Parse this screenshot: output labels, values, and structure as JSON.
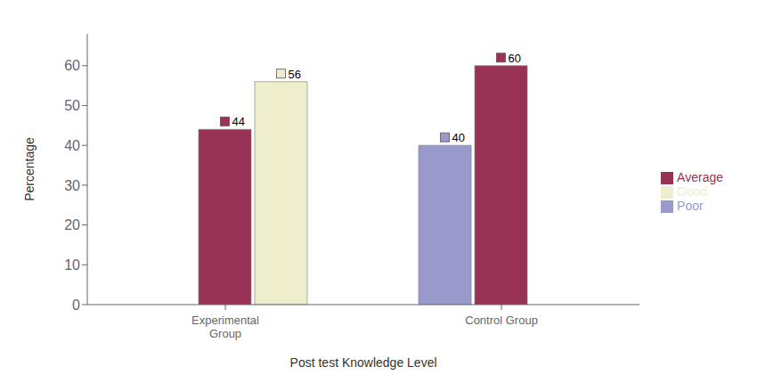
{
  "chart_data": {
    "type": "bar",
    "categories": [
      "Experimental\nGroup",
      "Control Group"
    ],
    "series": [
      {
        "name": "Poor",
        "color": "#9999CC",
        "values": [
          0,
          40
        ]
      },
      {
        "name": "Average",
        "color": "#993355",
        "values": [
          44,
          60
        ]
      },
      {
        "name": "Good",
        "color": "#EEEECC",
        "values": [
          56,
          0
        ]
      }
    ],
    "xlabel": "Post test Knowledge Level",
    "ylabel": "Percentage",
    "ylim": [
      0,
      68
    ],
    "yticks": [
      0,
      10,
      20,
      30,
      40,
      50,
      60
    ],
    "grid": false,
    "legend": "right",
    "data_labels": true
  }
}
